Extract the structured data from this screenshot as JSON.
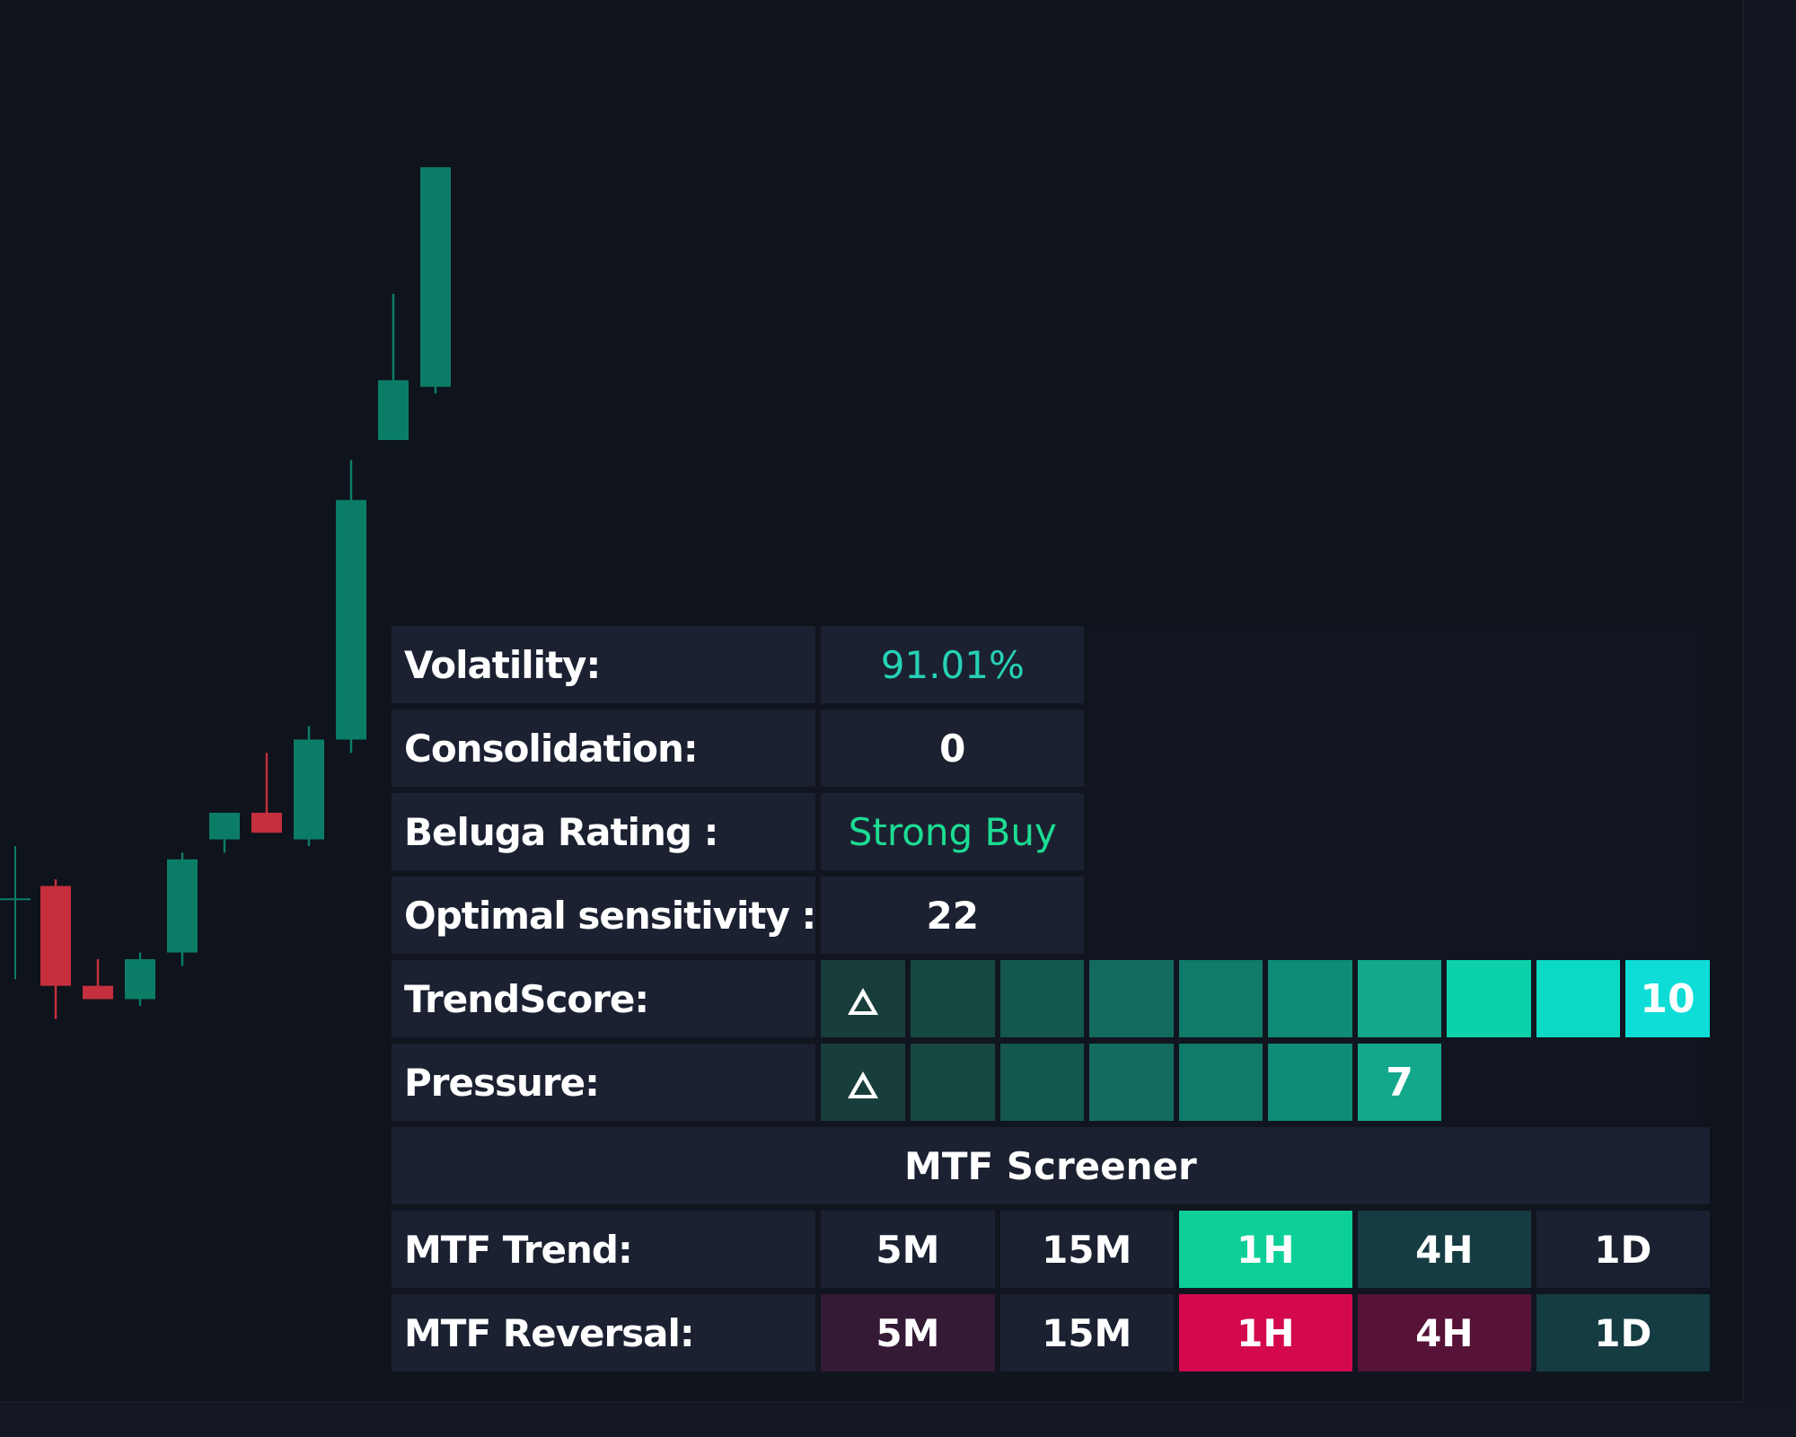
{
  "candles": [
    {
      "o": 70,
      "h": 78,
      "l": 58,
      "c": 72
    },
    {
      "o": 72,
      "h": 73,
      "l": 52,
      "c": 57
    },
    {
      "o": 57,
      "h": 61,
      "l": 56,
      "c": 55
    },
    {
      "o": 55,
      "h": 62,
      "l": 54,
      "c": 61
    },
    {
      "o": 62,
      "h": 77,
      "l": 60,
      "c": 76
    },
    {
      "o": 79,
      "h": 83,
      "l": 77,
      "c": 83
    },
    {
      "o": 83,
      "h": 92,
      "l": 80,
      "c": 80
    },
    {
      "o": 79,
      "h": 96,
      "l": 78,
      "c": 94
    },
    {
      "o": 94,
      "h": 136,
      "l": 92,
      "c": 130
    },
    {
      "o": 139,
      "h": 161,
      "l": 139,
      "c": 148
    },
    {
      "o": 147,
      "h": 180,
      "l": 146,
      "c": 180
    }
  ],
  "colors": {
    "bull": "#0b7d67",
    "bear": "#c62f3d",
    "panel_bg": "#1b2131",
    "cyan": "#26d2b6",
    "green": "#1ddc93"
  },
  "table": {
    "rows": [
      {
        "label": "Volatility:",
        "value": "91.01%",
        "style": "cyan"
      },
      {
        "label": "Consolidation:",
        "value": "0",
        "style": "white"
      },
      {
        "label": "Beluga Rating :",
        "value": "Strong Buy",
        "style": "green"
      },
      {
        "label": "Optimal sensitivity :",
        "value": "22",
        "style": "white"
      }
    ],
    "trendscore": {
      "label": "TrendScore:",
      "icon": "triangle-up-icon",
      "value": "10",
      "cell_colors": [
        "#183e3b",
        "#17483f",
        "#13574d",
        "#126b5e",
        "#117a69",
        "#0f8b77",
        "#13a88c",
        "#0cd2ab",
        "#0cd9c4",
        "#0ddcd7"
      ]
    },
    "pressure": {
      "label": "Pressure:",
      "icon": "triangle-up-icon",
      "value": "7",
      "cell_colors": [
        "#183e3b",
        "#17483f",
        "#13574d",
        "#126b5e",
        "#117a69",
        "#0f8b77",
        "#13a88c"
      ]
    },
    "screener_title": "MTF Screener",
    "mtf_trend": {
      "label": "MTF Trend:",
      "cells": [
        {
          "tf": "5M",
          "bg": "#1b2131"
        },
        {
          "tf": "15M",
          "bg": "#1b2131"
        },
        {
          "tf": "1H",
          "bg": "#0ccf98"
        },
        {
          "tf": "4H",
          "bg": "#143c42"
        },
        {
          "tf": "1D",
          "bg": "#1b2131"
        }
      ]
    },
    "mtf_reversal": {
      "label": "MTF Reversal:",
      "cells": [
        {
          "tf": "5M",
          "bg": "#351a35"
        },
        {
          "tf": "15M",
          "bg": "#1b2131"
        },
        {
          "tf": "1H",
          "bg": "#d4084f"
        },
        {
          "tf": "4H",
          "bg": "#561337"
        },
        {
          "tf": "1D",
          "bg": "#143c42"
        }
      ]
    }
  }
}
